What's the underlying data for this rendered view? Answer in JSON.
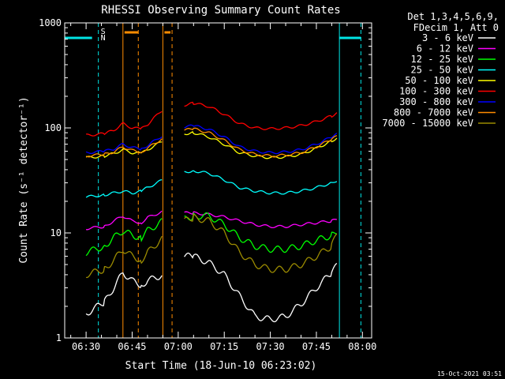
{
  "chart_data": {
    "type": "line",
    "title": "RHESSI Observing Summary Count Rates",
    "xlabel": "Start Time (18-Jun-10 06:23:02)",
    "ylabel": "Count Rate (s⁻¹ detector⁻¹)",
    "yscale": "log",
    "ylim": [
      1,
      1000
    ],
    "xlim": [
      "06:23:02",
      "08:03:00"
    ],
    "x_ticks": [
      "06:30",
      "06:45",
      "07:00",
      "07:15",
      "07:30",
      "07:45",
      "08:00"
    ],
    "y_ticks": [
      "1",
      "10",
      "100",
      "1000"
    ],
    "grid": false,
    "legend_position": "top-right",
    "legend_header": [
      "Det 1,3,4,5,6,9,",
      "FDecim 1, Att 0"
    ],
    "timestamp": "15-Oct-2021 03:51",
    "markers": {
      "saa_label": "S",
      "night_label": "N"
    },
    "segments": [
      {
        "start": "06:30:00",
        "end": "06:56:00"
      },
      {
        "start": "07:02:00",
        "end": "07:53:00"
      }
    ],
    "series": [
      {
        "name": "3 - 6 keV",
        "color": "#ffffff",
        "x": [
          "06:30",
          "06:36",
          "06:39",
          "06:42",
          "06:45",
          "06:48",
          "06:50",
          "06:55",
          "07:02",
          "07:05",
          "07:10",
          "07:15",
          "07:20",
          "07:25",
          "07:30",
          "07:35",
          "07:40",
          "07:45",
          "07:50",
          "07:52"
        ],
        "y": [
          1.7,
          2.2,
          3.0,
          4.2,
          3.5,
          3.2,
          3.5,
          4.0,
          6.0,
          6.0,
          5.2,
          4.0,
          2.5,
          1.6,
          1.5,
          1.6,
          2.1,
          3.0,
          4.2,
          5.0
        ]
      },
      {
        "name": "6 - 12 keV",
        "color": "#ff00ff",
        "x": [
          "06:30",
          "06:36",
          "06:39",
          "06:42",
          "06:45",
          "06:48",
          "06:50",
          "06:55",
          "07:02",
          "07:05",
          "07:10",
          "07:15",
          "07:20",
          "07:25",
          "07:30",
          "07:35",
          "07:40",
          "07:45",
          "07:50",
          "07:52"
        ],
        "y": [
          11.0,
          11.5,
          13.0,
          14.5,
          13.0,
          12.5,
          14.0,
          16.0,
          15.5,
          15.5,
          15.0,
          14.2,
          13.0,
          12.0,
          11.5,
          11.5,
          12.0,
          12.5,
          13.0,
          13.5
        ]
      },
      {
        "name": "12 - 25 keV",
        "color": "#00ff00",
        "x": [
          "06:30",
          "06:36",
          "06:39",
          "06:42",
          "06:45",
          "06:48",
          "06:50",
          "06:55",
          "07:02",
          "07:05",
          "07:10",
          "07:15",
          "07:20",
          "07:25",
          "07:30",
          "07:35",
          "07:40",
          "07:45",
          "07:50",
          "07:52"
        ],
        "y": [
          6.5,
          7.5,
          9.0,
          10.5,
          9.5,
          9.0,
          10.5,
          13.0,
          13.5,
          14.5,
          14.5,
          12.0,
          9.0,
          7.5,
          7.0,
          7.0,
          7.5,
          8.5,
          9.5,
          10.5
        ]
      },
      {
        "name": "25 - 50 keV",
        "color": "#00ffff",
        "x": [
          "06:30",
          "06:36",
          "06:39",
          "06:42",
          "06:45",
          "06:48",
          "06:50",
          "06:55",
          "07:02",
          "07:05",
          "07:10",
          "07:15",
          "07:20",
          "07:25",
          "07:30",
          "07:35",
          "07:40",
          "07:45",
          "07:50",
          "07:52"
        ],
        "y": [
          22,
          23,
          24,
          25,
          24,
          25,
          27,
          32,
          38,
          39,
          37,
          32,
          27,
          25,
          24,
          24,
          25,
          27,
          30,
          32
        ]
      },
      {
        "name": "50 - 100 keV",
        "color": "#ffff00",
        "x": [
          "06:30",
          "06:36",
          "06:39",
          "06:42",
          "06:45",
          "06:48",
          "06:50",
          "06:55",
          "07:02",
          "07:05",
          "07:10",
          "07:15",
          "07:20",
          "07:25",
          "07:30",
          "07:35",
          "07:40",
          "07:45",
          "07:50",
          "07:52"
        ],
        "y": [
          52,
          54,
          57,
          62,
          58,
          57,
          62,
          75,
          88,
          90,
          82,
          70,
          58,
          54,
          52,
          53,
          56,
          64,
          75,
          82
        ]
      },
      {
        "name": "100 - 300 keV",
        "color": "#ff0000",
        "x": [
          "06:30",
          "06:36",
          "06:39",
          "06:42",
          "06:45",
          "06:48",
          "06:50",
          "06:55",
          "07:02",
          "07:05",
          "07:10",
          "07:15",
          "07:20",
          "07:25",
          "07:30",
          "07:35",
          "07:40",
          "07:45",
          "07:50",
          "07:52"
        ],
        "y": [
          85,
          88,
          95,
          110,
          100,
          98,
          108,
          150,
          165,
          172,
          160,
          135,
          110,
          100,
          98,
          100,
          105,
          115,
          130,
          140
        ]
      },
      {
        "name": "300 - 800 keV",
        "color": "#0000ff",
        "x": [
          "06:30",
          "06:36",
          "06:39",
          "06:42",
          "06:45",
          "06:48",
          "06:50",
          "06:55",
          "07:02",
          "07:05",
          "07:10",
          "07:15",
          "07:20",
          "07:25",
          "07:30",
          "07:35",
          "07:40",
          "07:45",
          "07:50",
          "07:52"
        ],
        "y": [
          58,
          60,
          63,
          70,
          65,
          63,
          68,
          85,
          102,
          105,
          97,
          82,
          66,
          60,
          58,
          59,
          62,
          70,
          82,
          88
        ]
      },
      {
        "name": "800 - 7000 keV",
        "color": "#ff8c00",
        "x": [
          "06:30",
          "06:36",
          "06:39",
          "06:42",
          "06:45",
          "06:48",
          "06:50",
          "06:55",
          "07:02",
          "07:05",
          "07:10",
          "07:15",
          "07:20",
          "07:25",
          "07:30",
          "07:35",
          "07:40",
          "07:45",
          "07:50",
          "07:52"
        ],
        "y": [
          54,
          56,
          59,
          66,
          61,
          59,
          64,
          80,
          95,
          98,
          90,
          76,
          62,
          56,
          54,
          55,
          58,
          66,
          78,
          84
        ]
      },
      {
        "name": "7000 - 15000 keV",
        "color": "#9b8b00",
        "x": [
          "06:30",
          "06:36",
          "06:39",
          "06:42",
          "06:45",
          "06:48",
          "06:50",
          "06:55",
          "07:02",
          "07:05",
          "07:10",
          "07:15",
          "07:20",
          "07:25",
          "07:30",
          "07:35",
          "07:40",
          "07:45",
          "07:50",
          "07:52"
        ],
        "y": [
          4.0,
          4.5,
          5.5,
          7.0,
          6.0,
          5.5,
          6.5,
          9.0,
          13.0,
          14.0,
          13.0,
          10.0,
          6.5,
          5.0,
          4.5,
          4.5,
          5.0,
          6.0,
          7.5,
          10.5
        ]
      }
    ]
  }
}
